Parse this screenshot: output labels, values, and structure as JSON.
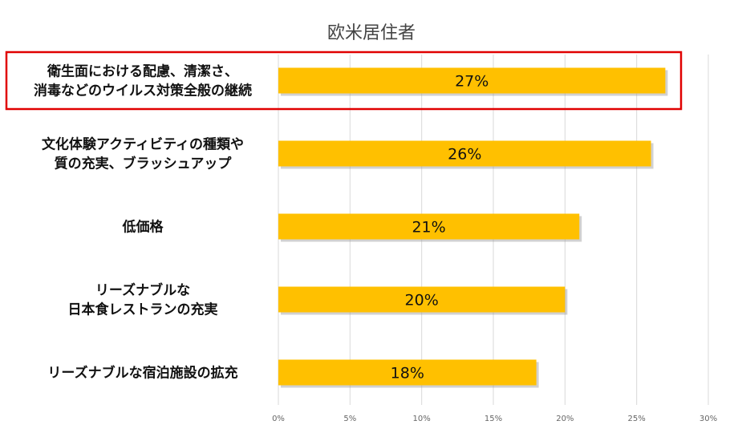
{
  "chart_data": {
    "type": "bar",
    "orientation": "horizontal",
    "title": "欧米居住者",
    "xlabel": "",
    "ylabel": "",
    "categories": [
      [
        "衛生面における配慮、清潔さ、",
        "消毒などのウイルス対策全般の継続"
      ],
      [
        "文化体験アクティビティの種類や",
        "質の充実、ブラッシュアップ"
      ],
      [
        "低価格"
      ],
      [
        "リーズナブルな",
        "日本食レストランの充実"
      ],
      [
        "リーズナブルな宿泊施設の拡充"
      ]
    ],
    "values": [
      27,
      26,
      21,
      20,
      18
    ],
    "data_labels": [
      "27%",
      "26%",
      "21%",
      "20%",
      "18%"
    ],
    "xlim": [
      0,
      30
    ],
    "xticks": [
      "0%",
      "5%",
      "10%",
      "15%",
      "20%",
      "25%",
      "30%"
    ],
    "grid": true,
    "legend": "none",
    "bar_color": "#FFC000",
    "highlight_color": "#E00000",
    "highlighted_index": 0
  }
}
